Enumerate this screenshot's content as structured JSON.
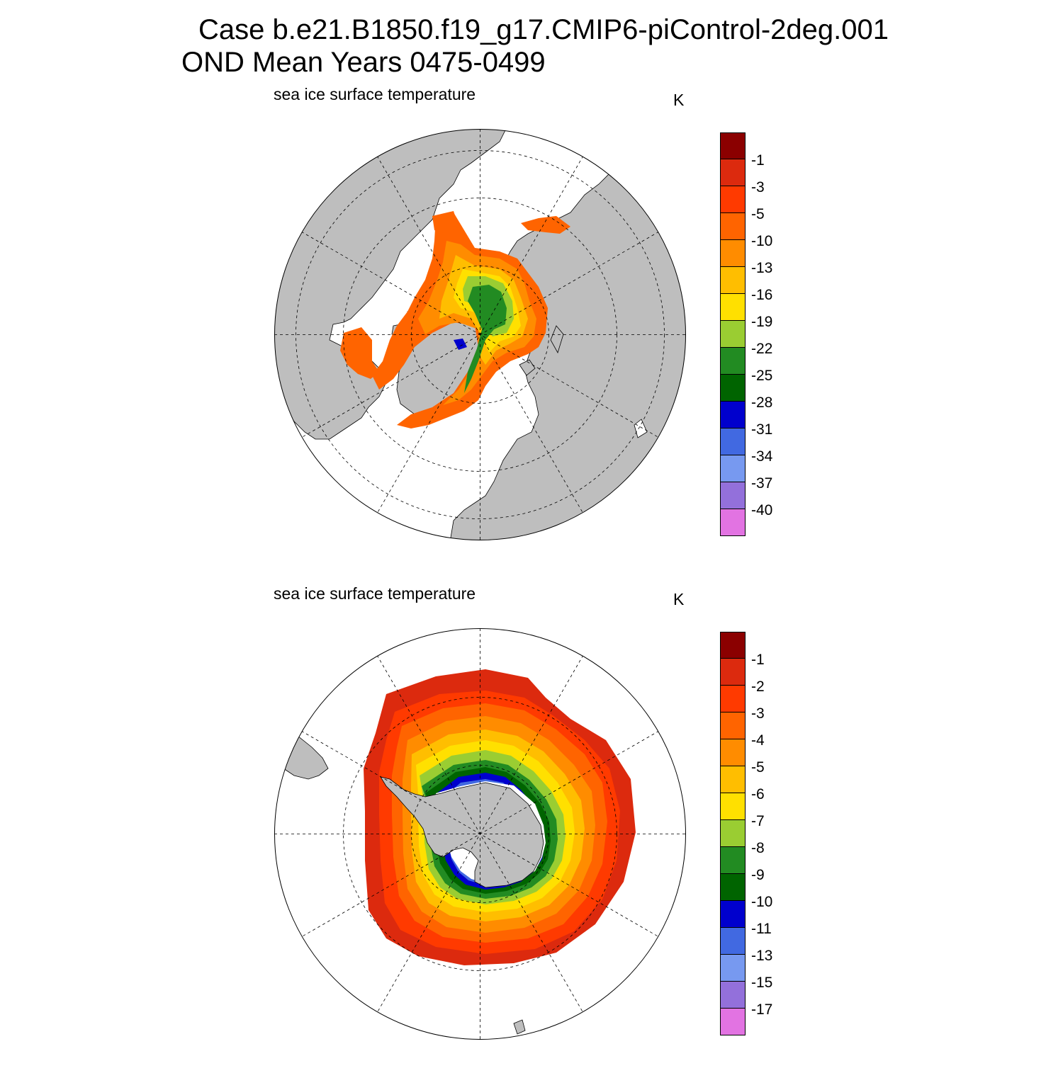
{
  "title": {
    "line1": "Case b.e21.B1850.f19_g17.CMIP6-piControl-2deg.001",
    "line2": "OND Mean   Years 0475-0499"
  },
  "panels": [
    {
      "hemisphere": "north",
      "subtitle": "sea ice surface temperature",
      "units": "K",
      "colorbar": {
        "colors": [
          "#8b0000",
          "#dc2a0e",
          "#ff3a00",
          "#ff6400",
          "#ff8c00",
          "#ffbe00",
          "#ffe000",
          "#9acd32",
          "#228b22",
          "#006400",
          "#0000cd",
          "#4169e1",
          "#7799f0",
          "#9370db",
          "#e273e2"
        ],
        "labels": [
          "-1",
          "-3",
          "-5",
          "-10",
          "-13",
          "-16",
          "-19",
          "-22",
          "-25",
          "-28",
          "-31",
          "-34",
          "-37",
          "-40"
        ]
      }
    },
    {
      "hemisphere": "south",
      "subtitle": "sea ice surface temperature",
      "units": "K",
      "colorbar": {
        "colors": [
          "#8b0000",
          "#dc2a0e",
          "#ff3a00",
          "#ff6400",
          "#ff8c00",
          "#ffbe00",
          "#ffe000",
          "#9acd32",
          "#228b22",
          "#006400",
          "#0000cd",
          "#4169e1",
          "#7799f0",
          "#9370db",
          "#e273e2"
        ],
        "labels": [
          "-1",
          "-2",
          "-3",
          "-4",
          "-5",
          "-6",
          "-7",
          "-8",
          "-9",
          "-10",
          "-11",
          "-13",
          "-15",
          "-17"
        ]
      }
    }
  ],
  "colors": {
    "land": "#bebebe",
    "ocean": "#ffffff",
    "grid": "#000000"
  }
}
